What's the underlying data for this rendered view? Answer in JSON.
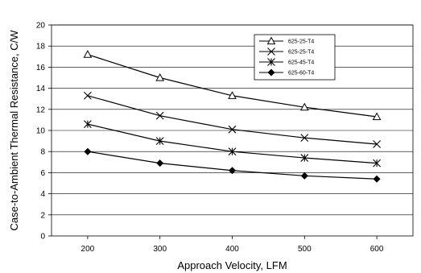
{
  "chart_data": {
    "type": "line",
    "title": "",
    "xlabel": "Approach Velocity, LFM",
    "ylabel": "Case-to-Ambient Thermal Resistance, C/W",
    "x": [
      200,
      300,
      400,
      500,
      600
    ],
    "xlim": [
      150,
      650
    ],
    "ylim": [
      0,
      20
    ],
    "xticks": [
      200,
      300,
      400,
      500,
      600
    ],
    "yticks": [
      0,
      2,
      4,
      6,
      8,
      10,
      12,
      14,
      16,
      18,
      20
    ],
    "grid": "horizontal",
    "legend_position": "top-right",
    "series": [
      {
        "name": "625-25-T4",
        "marker": "triangle",
        "values": [
          17.2,
          15.0,
          13.3,
          12.2,
          11.3
        ]
      },
      {
        "name": "625-25-T4",
        "marker": "x",
        "values": [
          13.3,
          11.4,
          10.1,
          9.3,
          8.7
        ]
      },
      {
        "name": "625-45-T4",
        "marker": "asterisk",
        "values": [
          10.6,
          9.0,
          8.0,
          7.4,
          6.9
        ]
      },
      {
        "name": "625-60-T4",
        "marker": "diamond",
        "values": [
          8.0,
          6.9,
          6.2,
          5.7,
          5.4
        ]
      }
    ]
  }
}
